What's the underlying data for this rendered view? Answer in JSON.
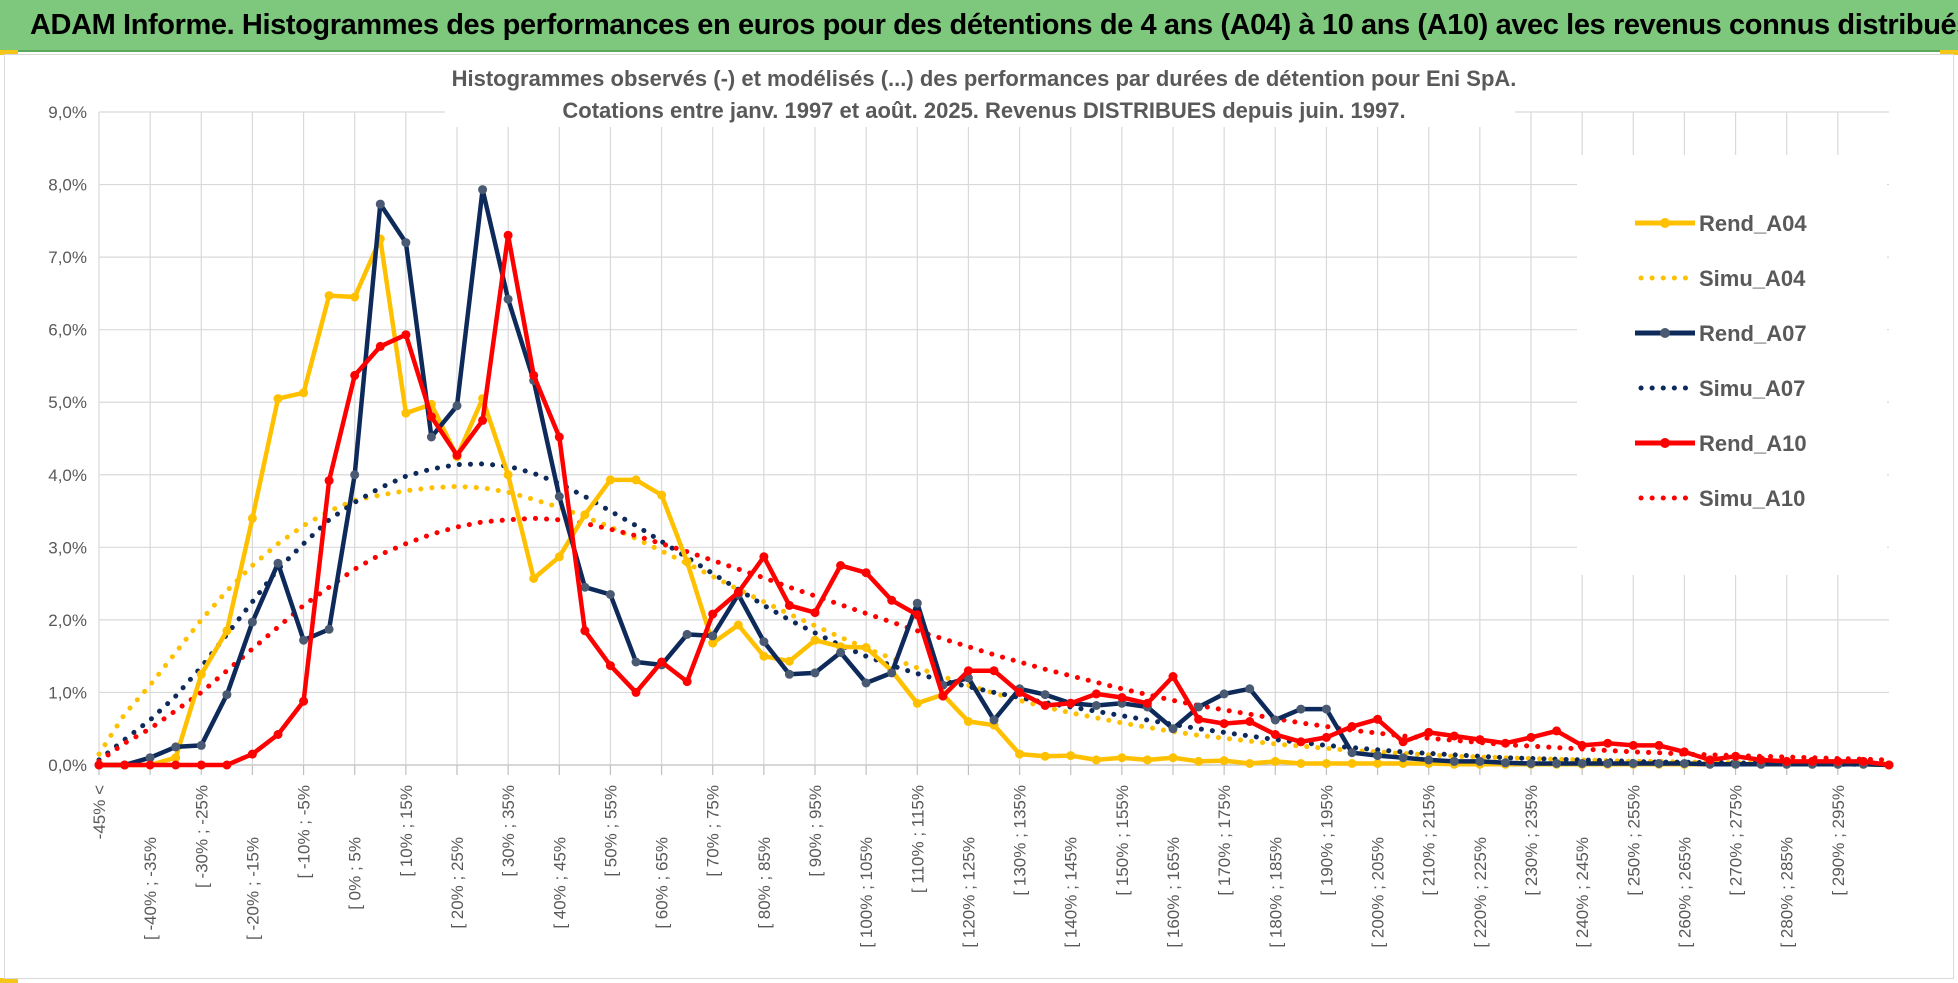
{
  "header": {
    "title": "ADAM Informe. Histogrammes des performances en euros pour des détentions de 4 ans (A04) à 10 ans (A10) avec les revenus connus distribués"
  },
  "colors": {
    "header_bg": "#7dc87d",
    "a04": "#ffc000",
    "a07": "#0e2a5a",
    "a10": "#ff0000"
  },
  "chart_data": {
    "type": "line",
    "title": "Histogrammes observés (-) et modélisés (...) des performances par durées de détention pour Eni SpA.",
    "subtitle": "Cotations entre janv. 1997 et août. 2025. Revenus DISTRIBUES depuis juin. 1997.",
    "xlabel": "",
    "ylabel": "",
    "ylim": [
      0,
      9
    ],
    "y_ticks": [
      "0,0%",
      "1,0%",
      "2,0%",
      "3,0%",
      "4,0%",
      "5,0%",
      "6,0%",
      "7,0%",
      "8,0%",
      "9,0%"
    ],
    "grid": true,
    "legend_position": "right",
    "x_labels": [
      "-45% <",
      "[ -40% ; -35%",
      "[ -30% ; -25%",
      "[ -20% ; -15%",
      "[ -10% ; -5%",
      "[ 0% ; 5%",
      "[ 10% ; 15%",
      "[ 20% ; 25%",
      "[ 30% ; 35%",
      "[ 40% ; 45%",
      "[ 50% ; 55%",
      "[ 60% ; 65%",
      "[ 70% ; 75%",
      "[ 80% ; 85%",
      "[ 90% ; 95%",
      "[ 100% ; 105%",
      "[ 110% ; 115%",
      "[ 120% ; 125%",
      "[ 130% ; 135%",
      "[ 140% ; 145%",
      "[ 150% ; 155%",
      "[ 160% ; 165%",
      "[ 170% ; 175%",
      "[ 180% ; 185%",
      "[ 190% ; 195%",
      "[ 200% ; 205%",
      "[ 210% ; 215%",
      "[ 220% ; 225%",
      "[ 230% ; 235%",
      "[ 240% ; 245%",
      "[ 250% ; 255%",
      "[ 260% ; 265%",
      "[ 270% ; 275%",
      "[ 280% ; 285%",
      "[ 290% ; 295%"
    ],
    "series": [
      {
        "name": "Rend_A04",
        "style": "solid",
        "color": "#ffc000",
        "values": [
          0,
          0,
          0,
          0.1,
          1.25,
          1.85,
          3.4,
          5.05,
          5.13,
          6.47,
          6.45,
          7.25,
          4.85,
          4.97,
          4.25,
          5.05,
          4.0,
          2.57,
          2.87,
          3.45,
          3.93,
          3.93,
          3.72,
          2.8,
          1.68,
          1.93,
          1.5,
          1.43,
          1.72,
          1.63,
          1.62,
          1.3,
          0.85,
          0.97,
          0.6,
          0.55,
          0.15,
          0.12,
          0.13,
          0.07,
          0.1,
          0.07,
          0.1,
          0.05,
          0.06,
          0.02,
          0.05,
          0.02,
          0.02,
          0.02,
          0.02,
          0.02,
          0.02,
          0.01,
          0.01,
          0.01,
          0.01,
          0.01,
          0.01,
          0.01,
          0.01,
          0.01,
          0.01,
          0.01,
          0.01,
          0.01,
          0.01,
          0.01,
          0.01,
          0.01,
          0.0
        ]
      },
      {
        "name": "Simu_A04",
        "style": "dotted",
        "color": "#ffc000",
        "values": [
          0.15,
          0.7,
          1.1,
          1.55,
          2.0,
          2.4,
          2.75,
          3.05,
          3.3,
          3.5,
          3.65,
          3.72,
          3.78,
          3.82,
          3.84,
          3.82,
          3.76,
          3.66,
          3.55,
          3.42,
          3.28,
          3.12,
          2.95,
          2.78,
          2.6,
          2.42,
          2.25,
          2.08,
          1.92,
          1.76,
          1.61,
          1.47,
          1.34,
          1.22,
          1.1,
          0.99,
          0.89,
          0.8,
          0.72,
          0.65,
          0.58,
          0.52,
          0.46,
          0.41,
          0.37,
          0.33,
          0.29,
          0.26,
          0.23,
          0.2,
          0.18,
          0.16,
          0.14,
          0.12,
          0.11,
          0.1,
          0.09,
          0.08,
          0.07,
          0.06,
          0.05,
          0.05,
          0.04,
          0.04,
          0.03,
          0.03,
          0.03,
          0.02,
          0.02,
          0.02,
          0.02
        ]
      },
      {
        "name": "Rend_A07",
        "style": "solid",
        "color": "#0e2a5a",
        "values": [
          0,
          0,
          0.1,
          0.25,
          0.27,
          0.97,
          1.97,
          2.78,
          1.72,
          1.87,
          4.0,
          7.73,
          7.2,
          4.52,
          4.95,
          7.93,
          6.42,
          5.3,
          3.7,
          2.45,
          2.35,
          1.42,
          1.38,
          1.8,
          1.78,
          2.35,
          1.7,
          1.25,
          1.27,
          1.55,
          1.13,
          1.27,
          2.23,
          1.1,
          1.2,
          0.62,
          1.05,
          0.97,
          0.85,
          0.82,
          0.85,
          0.8,
          0.5,
          0.8,
          0.98,
          1.05,
          0.62,
          0.77,
          0.77,
          0.17,
          0.13,
          0.1,
          0.07,
          0.05,
          0.05,
          0.03,
          0.02,
          0.02,
          0.02,
          0.02,
          0.02,
          0.02,
          0.02,
          0.01,
          0.01,
          0.01,
          0.01,
          0.01,
          0.01,
          0.01,
          0.0
        ]
      },
      {
        "name": "Simu_A07",
        "style": "dotted",
        "color": "#0e2a5a",
        "values": [
          0.07,
          0.35,
          0.62,
          0.95,
          1.35,
          1.8,
          2.25,
          2.7,
          3.05,
          3.38,
          3.62,
          3.82,
          3.98,
          4.08,
          4.14,
          4.15,
          4.12,
          4.02,
          3.88,
          3.7,
          3.5,
          3.3,
          3.08,
          2.86,
          2.64,
          2.42,
          2.2,
          2.0,
          1.82,
          1.65,
          1.5,
          1.37,
          1.26,
          1.16,
          1.08,
          1.0,
          0.93,
          0.86,
          0.8,
          0.74,
          0.68,
          0.62,
          0.56,
          0.5,
          0.45,
          0.4,
          0.35,
          0.31,
          0.27,
          0.24,
          0.21,
          0.18,
          0.16,
          0.14,
          0.12,
          0.1,
          0.09,
          0.08,
          0.07,
          0.06,
          0.05,
          0.04,
          0.04,
          0.03,
          0.03,
          0.02,
          0.02,
          0.02,
          0.01,
          0.01,
          0.01
        ]
      },
      {
        "name": "Rend_A10",
        "style": "solid",
        "color": "#ff0000",
        "values": [
          0,
          0,
          0,
          0,
          0,
          0,
          0.15,
          0.42,
          0.88,
          3.92,
          5.37,
          5.77,
          5.93,
          4.8,
          4.27,
          4.75,
          7.3,
          5.37,
          4.52,
          1.85,
          1.37,
          1.0,
          1.42,
          1.15,
          2.08,
          2.38,
          2.87,
          2.2,
          2.1,
          2.75,
          2.65,
          2.27,
          2.07,
          0.95,
          1.3,
          1.3,
          1.0,
          0.82,
          0.85,
          0.98,
          0.93,
          0.85,
          1.22,
          0.63,
          0.57,
          0.6,
          0.42,
          0.32,
          0.38,
          0.53,
          0.63,
          0.32,
          0.45,
          0.4,
          0.35,
          0.3,
          0.38,
          0.47,
          0.27,
          0.3,
          0.27,
          0.27,
          0.18,
          0.07,
          0.12,
          0.07,
          0.05,
          0.05,
          0.05,
          0.05,
          0.0
        ]
      },
      {
        "name": "Simu_A10",
        "style": "dotted",
        "color": "#ff0000",
        "values": [
          0.05,
          0.3,
          0.5,
          0.75,
          1.0,
          1.3,
          1.6,
          1.9,
          2.2,
          2.45,
          2.7,
          2.9,
          3.05,
          3.18,
          3.28,
          3.35,
          3.38,
          3.4,
          3.38,
          3.33,
          3.25,
          3.16,
          3.05,
          2.94,
          2.82,
          2.7,
          2.58,
          2.45,
          2.33,
          2.21,
          2.09,
          1.97,
          1.85,
          1.74,
          1.63,
          1.52,
          1.42,
          1.32,
          1.23,
          1.14,
          1.05,
          0.97,
          0.89,
          0.82,
          0.76,
          0.7,
          0.64,
          0.58,
          0.53,
          0.48,
          0.44,
          0.4,
          0.37,
          0.34,
          0.31,
          0.28,
          0.26,
          0.24,
          0.22,
          0.2,
          0.18,
          0.17,
          0.15,
          0.14,
          0.13,
          0.12,
          0.11,
          0.1,
          0.09,
          0.08,
          0.07
        ]
      }
    ]
  }
}
